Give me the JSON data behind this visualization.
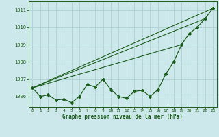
{
  "title": "Graphe pression niveau de la mer (hPa)",
  "bg_color": "#cde8ea",
  "grid_color": "#aacdd0",
  "line_color": "#1a5c1a",
  "x_ticks": [
    0,
    1,
    2,
    3,
    4,
    5,
    6,
    7,
    8,
    9,
    10,
    11,
    12,
    13,
    14,
    15,
    16,
    17,
    18,
    19,
    20,
    21,
    22,
    23
  ],
  "ylim": [
    1005.4,
    1011.5
  ],
  "yticks": [
    1006,
    1007,
    1008,
    1009,
    1010,
    1011
  ],
  "series": [
    1006.5,
    1006.0,
    1006.1,
    1005.8,
    1005.85,
    1005.65,
    1006.0,
    1006.7,
    1006.55,
    1007.0,
    1006.4,
    1006.0,
    1005.9,
    1006.3,
    1006.35,
    1006.0,
    1006.4,
    1007.3,
    1008.0,
    1009.0,
    1009.65,
    1010.0,
    1010.5,
    1011.1
  ],
  "straight_lines": [
    [
      0,
      23,
      1006.5,
      1011.1
    ],
    [
      0,
      22,
      1006.5,
      1010.5
    ],
    [
      0,
      19,
      1006.5,
      1009.0
    ]
  ]
}
